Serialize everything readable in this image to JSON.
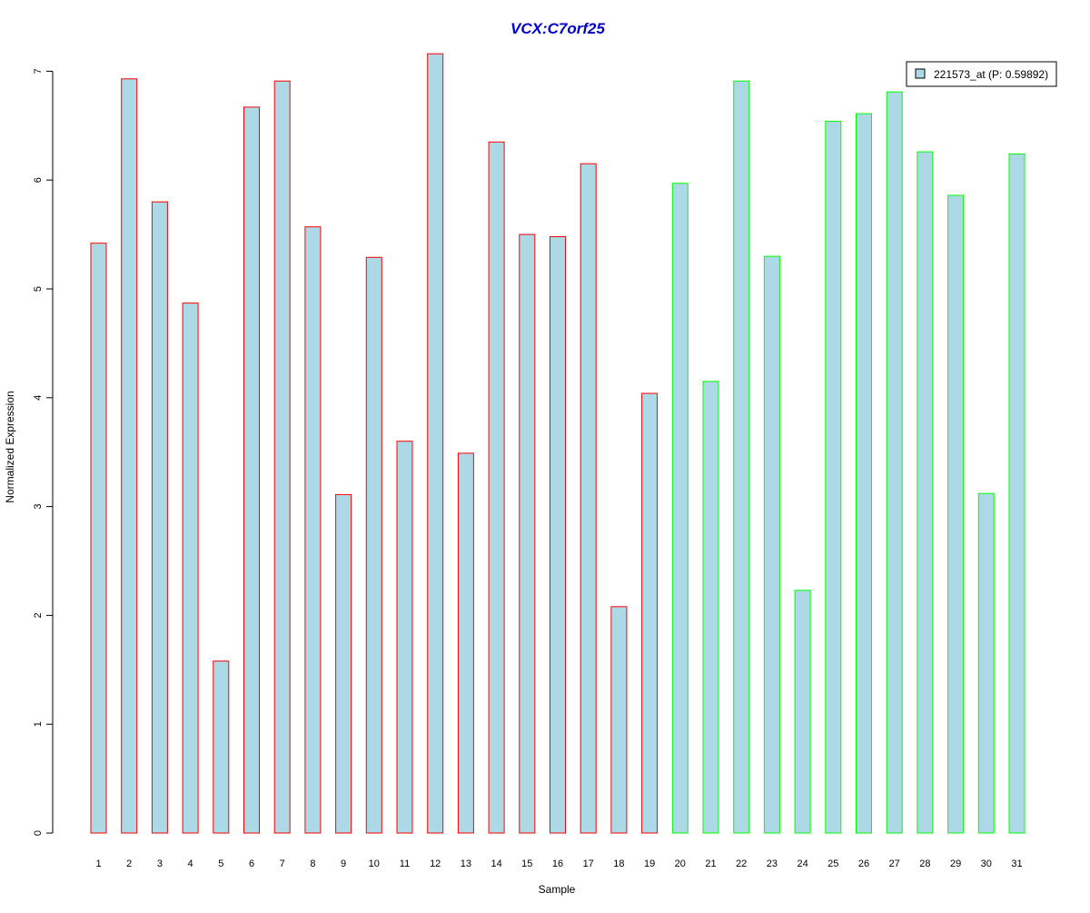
{
  "chart_data": {
    "type": "bar",
    "title": "VCX:C7orf25",
    "xlabel": "Sample",
    "ylabel": "Normalized Expression",
    "ylim": [
      0,
      7.2
    ],
    "yticks": [
      0,
      1,
      2,
      3,
      4,
      5,
      6,
      7
    ],
    "grid": false,
    "legend": {
      "placement": "top-right",
      "label": "221573_at (P: 0.59892)"
    },
    "categories": [
      "1",
      "2",
      "3",
      "4",
      "5",
      "6",
      "7",
      "8",
      "9",
      "10",
      "11",
      "12",
      "13",
      "14",
      "15",
      "16",
      "17",
      "18",
      "19",
      "20",
      "21",
      "22",
      "23",
      "24",
      "25",
      "26",
      "27",
      "28",
      "29",
      "30",
      "31"
    ],
    "series": [
      {
        "name": "221573_at (P: 0.59892)",
        "values": [
          5.42,
          6.93,
          5.8,
          4.87,
          1.58,
          6.67,
          6.91,
          5.57,
          3.11,
          5.29,
          3.6,
          7.16,
          3.49,
          6.35,
          5.5,
          5.48,
          6.15,
          2.08,
          4.04,
          5.97,
          4.15,
          6.91,
          5.3,
          2.23,
          6.54,
          6.61,
          6.81,
          6.26,
          5.86,
          3.12,
          6.24
        ]
      }
    ],
    "groups": [
      1,
      1,
      1,
      1,
      1,
      1,
      1,
      1,
      1,
      1,
      1,
      1,
      1,
      1,
      1,
      1,
      1,
      1,
      1,
      2,
      2,
      2,
      2,
      2,
      2,
      2,
      2,
      2,
      2,
      2,
      2
    ]
  },
  "colors": {
    "title": "#0000CC",
    "bar_fill": "#ADD8E6",
    "group_1_border": "#FF0000",
    "group_2_border": "#00FF00",
    "axis": "#000000"
  }
}
